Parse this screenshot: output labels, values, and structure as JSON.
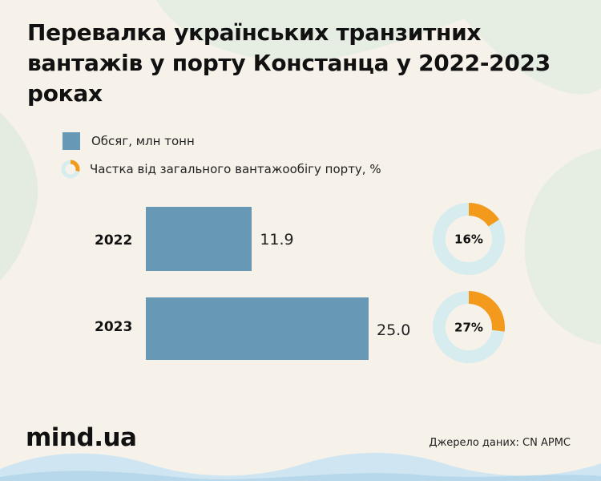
{
  "title": "Перевалка українських транзитних вантажів у порту Констанца у 2022-2023 роках",
  "legend": {
    "volume": "Обсяг, млн тонн",
    "share": "Частка від загального вантажообігу порту, %"
  },
  "brand": "mind.ua",
  "source": "Джерело даних: CN APMC",
  "colors": {
    "bar": "#6899b4",
    "donut_fill": "#f39a1c",
    "donut_track": "#d6ecee",
    "background": "#f7f2e9"
  },
  "chart_data": {
    "type": "bar",
    "orientation": "horizontal",
    "categories": [
      "2022",
      "2023"
    ],
    "series": [
      {
        "name": "Обсяг, млн тонн",
        "values": [
          11.9,
          25.0
        ],
        "labels": [
          "11.9",
          "25.0"
        ]
      },
      {
        "name": "Частка від загального вантажообігу порту, %",
        "type": "donut",
        "values": [
          16,
          27
        ],
        "labels": [
          "16%",
          "27%"
        ]
      }
    ]
  }
}
